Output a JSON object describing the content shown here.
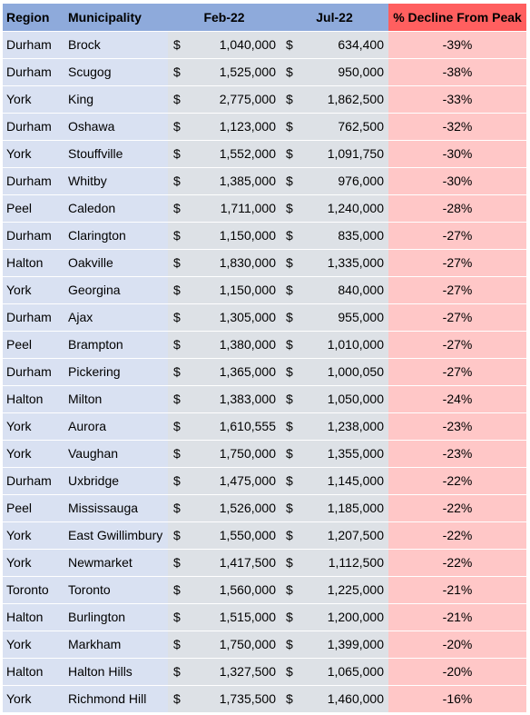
{
  "headers": {
    "region": "Region",
    "municipality": "Municipality",
    "feb": "Feb-22",
    "jul": "Jul-22",
    "decline": "% Decline From Peak"
  },
  "currency_symbol": "$",
  "colors": {
    "header_blue": "#8eaadb",
    "header_red": "#ff5f5f",
    "row_blue": "#d9e1f2",
    "row_grey": "#dde1e6",
    "row_pink": "#ffc7c7"
  },
  "rows": [
    {
      "region": "Durham",
      "municipality": "Brock",
      "feb": "1,040,000",
      "jul": "634,400",
      "decline": "-39%"
    },
    {
      "region": "Durham",
      "municipality": "Scugog",
      "feb": "1,525,000",
      "jul": "950,000",
      "decline": "-38%"
    },
    {
      "region": "York",
      "municipality": "King",
      "feb": "2,775,000",
      "jul": "1,862,500",
      "decline": "-33%"
    },
    {
      "region": "Durham",
      "municipality": "Oshawa",
      "feb": "1,123,000",
      "jul": "762,500",
      "decline": "-32%"
    },
    {
      "region": "York",
      "municipality": "Stouffville",
      "feb": "1,552,000",
      "jul": "1,091,750",
      "decline": "-30%"
    },
    {
      "region": "Durham",
      "municipality": "Whitby",
      "feb": "1,385,000",
      "jul": "976,000",
      "decline": "-30%"
    },
    {
      "region": "Peel",
      "municipality": "Caledon",
      "feb": "1,711,000",
      "jul": "1,240,000",
      "decline": "-28%"
    },
    {
      "region": "Durham",
      "municipality": "Clarington",
      "feb": "1,150,000",
      "jul": "835,000",
      "decline": "-27%"
    },
    {
      "region": "Halton",
      "municipality": "Oakville",
      "feb": "1,830,000",
      "jul": "1,335,000",
      "decline": "-27%"
    },
    {
      "region": "York",
      "municipality": "Georgina",
      "feb": "1,150,000",
      "jul": "840,000",
      "decline": "-27%"
    },
    {
      "region": "Durham",
      "municipality": "Ajax",
      "feb": "1,305,000",
      "jul": "955,000",
      "decline": "-27%"
    },
    {
      "region": "Peel",
      "municipality": "Brampton",
      "feb": "1,380,000",
      "jul": "1,010,000",
      "decline": "-27%"
    },
    {
      "region": "Durham",
      "municipality": "Pickering",
      "feb": "1,365,000",
      "jul": "1,000,050",
      "decline": "-27%"
    },
    {
      "region": "Halton",
      "municipality": "Milton",
      "feb": "1,383,000",
      "jul": "1,050,000",
      "decline": "-24%"
    },
    {
      "region": "York",
      "municipality": "Aurora",
      "feb": "1,610,555",
      "jul": "1,238,000",
      "decline": "-23%"
    },
    {
      "region": "York",
      "municipality": "Vaughan",
      "feb": "1,750,000",
      "jul": "1,355,000",
      "decline": "-23%"
    },
    {
      "region": "Durham",
      "municipality": "Uxbridge",
      "feb": "1,475,000",
      "jul": "1,145,000",
      "decline": "-22%"
    },
    {
      "region": "Peel",
      "municipality": "Mississauga",
      "feb": "1,526,000",
      "jul": "1,185,000",
      "decline": "-22%"
    },
    {
      "region": "York",
      "municipality": "East Gwillimbury",
      "feb": "1,550,000",
      "jul": "1,207,500",
      "decline": "-22%"
    },
    {
      "region": "York",
      "municipality": "Newmarket",
      "feb": "1,417,500",
      "jul": "1,112,500",
      "decline": "-22%"
    },
    {
      "region": "Toronto",
      "municipality": "Toronto",
      "feb": "1,560,000",
      "jul": "1,225,000",
      "decline": "-21%"
    },
    {
      "region": "Halton",
      "municipality": "Burlington",
      "feb": "1,515,000",
      "jul": "1,200,000",
      "decline": "-21%"
    },
    {
      "region": "York",
      "municipality": "Markham",
      "feb": "1,750,000",
      "jul": "1,399,000",
      "decline": "-20%"
    },
    {
      "region": "Halton",
      "municipality": "Halton Hills",
      "feb": "1,327,500",
      "jul": "1,065,000",
      "decline": "-20%"
    },
    {
      "region": "York",
      "municipality": "Richmond Hill",
      "feb": "1,735,500",
      "jul": "1,460,000",
      "decline": "-16%"
    }
  ]
}
